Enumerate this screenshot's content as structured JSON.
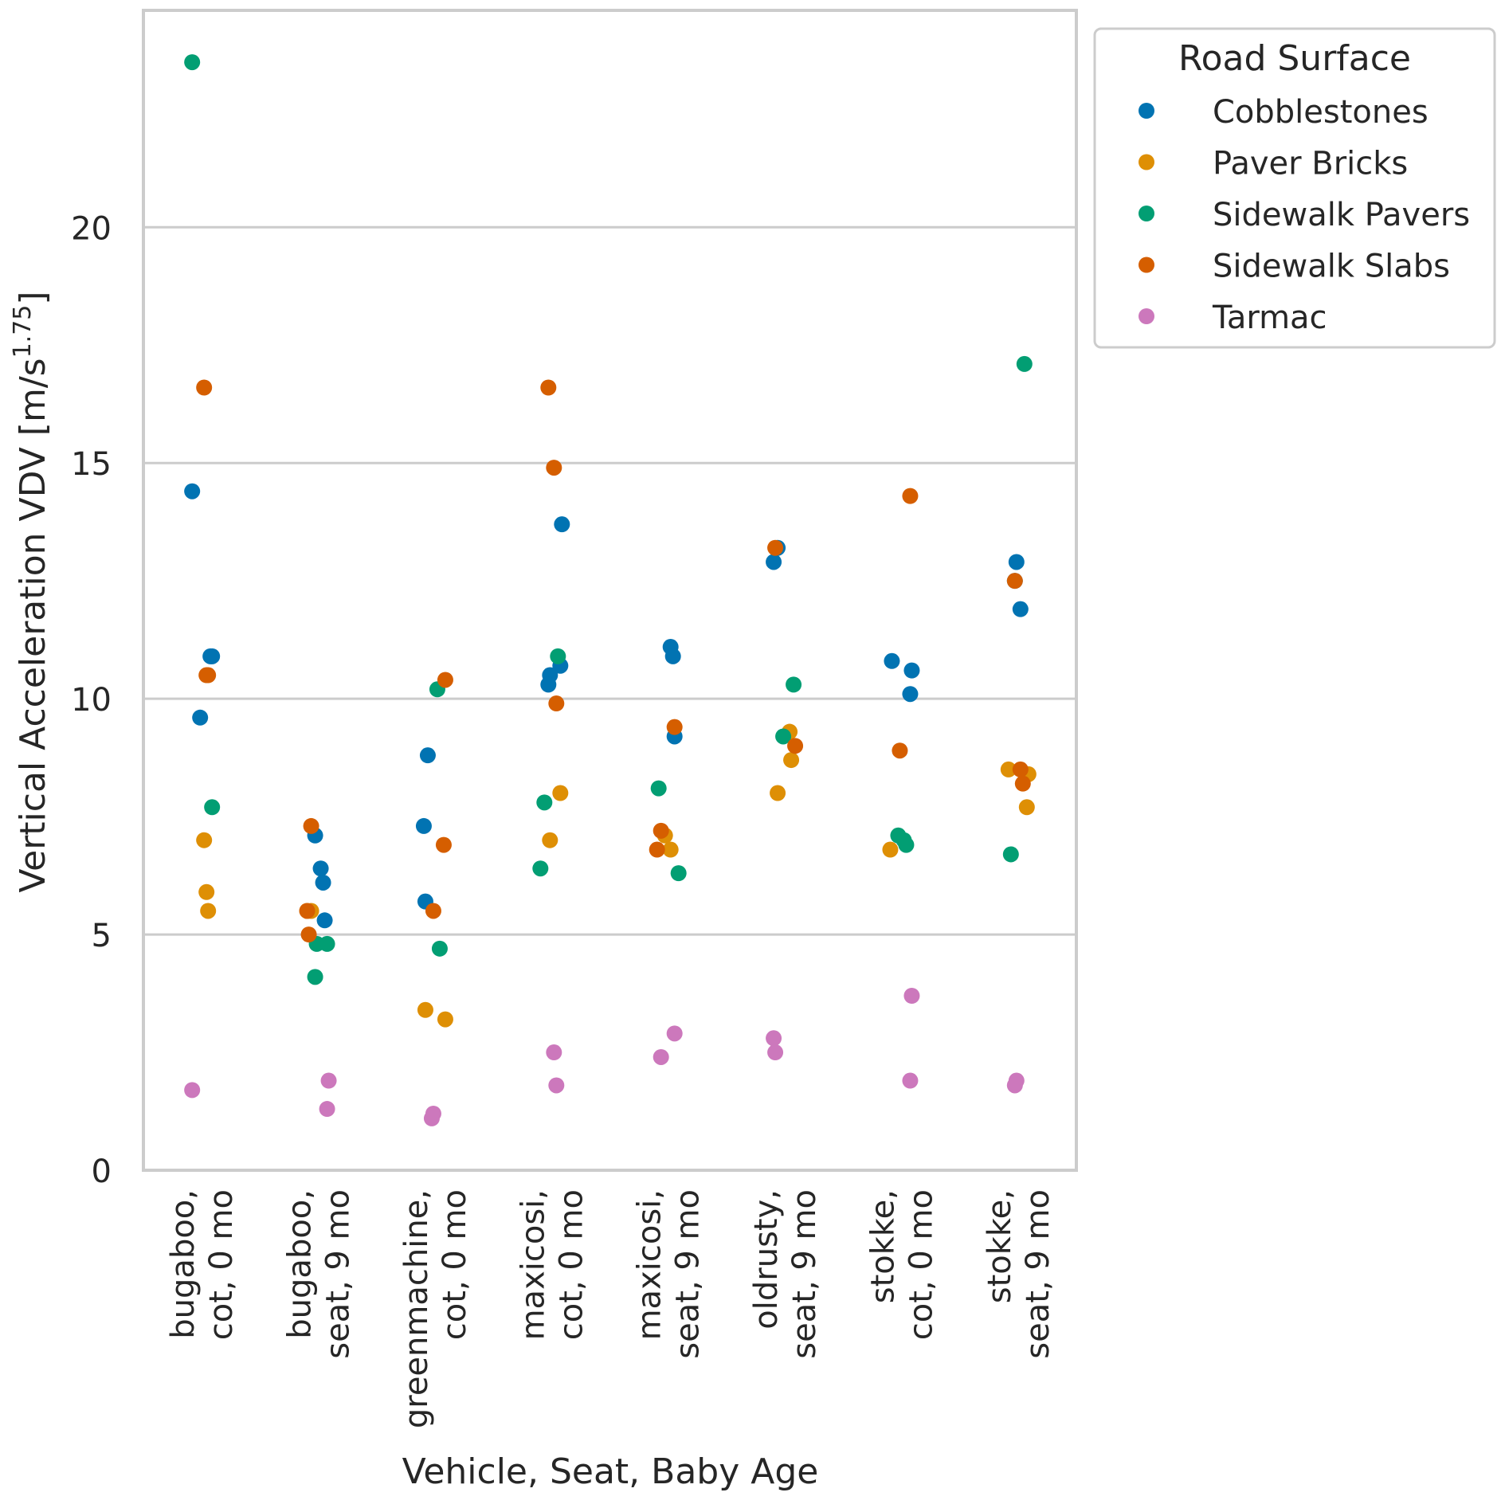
{
  "chart_data": {
    "type": "scatter",
    "xlabel": "Vehicle, Seat, Baby Age",
    "ylabel_main": "Vertical Acceleration VDV [m/s",
    "ylabel_sup": "1.75",
    "ylabel_close": "]",
    "ylim": [
      0,
      24.6
    ],
    "yticks": [
      0,
      5,
      10,
      15,
      20
    ],
    "grid": "horizontal",
    "legend_position": "outside-right-top",
    "legend_title": "Road Surface",
    "categories": [
      [
        "bugaboo,",
        "cot, 0 mo"
      ],
      [
        "bugaboo,",
        "seat, 9 mo"
      ],
      [
        "greenmachine,",
        "cot, 0 mo"
      ],
      [
        "maxicosi,",
        "cot, 0 mo"
      ],
      [
        "maxicosi,",
        "seat, 9 mo"
      ],
      [
        "oldrusty,",
        "seat, 9 mo"
      ],
      [
        "stokke,",
        "cot, 0 mo"
      ],
      [
        "stokke,",
        "seat, 9 mo"
      ]
    ],
    "series": [
      {
        "name": "Cobblestones",
        "color": "#0173b2",
        "points": [
          {
            "x": 0,
            "y": 14.4
          },
          {
            "x": 0,
            "y": 10.9
          },
          {
            "x": 0,
            "y": 10.9
          },
          {
            "x": 0,
            "y": 9.6
          },
          {
            "x": 1,
            "y": 7.1
          },
          {
            "x": 1,
            "y": 6.4
          },
          {
            "x": 1,
            "y": 6.1
          },
          {
            "x": 1,
            "y": 5.3
          },
          {
            "x": 2,
            "y": 8.8
          },
          {
            "x": 2,
            "y": 7.3
          },
          {
            "x": 2,
            "y": 5.7
          },
          {
            "x": 3,
            "y": 13.7
          },
          {
            "x": 3,
            "y": 10.7
          },
          {
            "x": 3,
            "y": 10.5
          },
          {
            "x": 3,
            "y": 10.3
          },
          {
            "x": 4,
            "y": 11.1
          },
          {
            "x": 4,
            "y": 10.9
          },
          {
            "x": 4,
            "y": 9.2
          },
          {
            "x": 5,
            "y": 13.2
          },
          {
            "x": 5,
            "y": 12.9
          },
          {
            "x": 6,
            "y": 10.8
          },
          {
            "x": 6,
            "y": 10.6
          },
          {
            "x": 6,
            "y": 10.1
          },
          {
            "x": 7,
            "y": 12.9
          },
          {
            "x": 7,
            "y": 12.5
          },
          {
            "x": 7,
            "y": 11.9
          }
        ]
      },
      {
        "name": "Paver Bricks",
        "color": "#de8f05",
        "points": [
          {
            "x": 0,
            "y": 7.0
          },
          {
            "x": 0,
            "y": 5.9
          },
          {
            "x": 0,
            "y": 5.5
          },
          {
            "x": 1,
            "y": 5.5
          },
          {
            "x": 1,
            "y": 5.5
          },
          {
            "x": 2,
            "y": 3.4
          },
          {
            "x": 2,
            "y": 3.2
          },
          {
            "x": 3,
            "y": 8.0
          },
          {
            "x": 3,
            "y": 7.0
          },
          {
            "x": 4,
            "y": 7.1
          },
          {
            "x": 4,
            "y": 6.8
          },
          {
            "x": 5,
            "y": 9.3
          },
          {
            "x": 5,
            "y": 8.7
          },
          {
            "x": 5,
            "y": 8.0
          },
          {
            "x": 6,
            "y": 6.8
          },
          {
            "x": 7,
            "y": 8.5
          },
          {
            "x": 7,
            "y": 8.4
          },
          {
            "x": 7,
            "y": 7.7
          }
        ]
      },
      {
        "name": "Sidewalk Pavers",
        "color": "#029e73",
        "points": [
          {
            "x": 0,
            "y": 23.5
          },
          {
            "x": 0,
            "y": 7.7
          },
          {
            "x": 1,
            "y": 4.8
          },
          {
            "x": 1,
            "y": 4.8
          },
          {
            "x": 1,
            "y": 4.1
          },
          {
            "x": 2,
            "y": 10.2
          },
          {
            "x": 2,
            "y": 4.7
          },
          {
            "x": 3,
            "y": 10.9
          },
          {
            "x": 3,
            "y": 7.8
          },
          {
            "x": 3,
            "y": 6.4
          },
          {
            "x": 4,
            "y": 8.1
          },
          {
            "x": 4,
            "y": 6.3
          },
          {
            "x": 5,
            "y": 10.3
          },
          {
            "x": 5,
            "y": 9.2
          },
          {
            "x": 6,
            "y": 7.1
          },
          {
            "x": 6,
            "y": 7.0
          },
          {
            "x": 6,
            "y": 6.9
          },
          {
            "x": 7,
            "y": 17.1
          },
          {
            "x": 7,
            "y": 6.7
          }
        ]
      },
      {
        "name": "Sidewalk Slabs",
        "color": "#d55e00",
        "points": [
          {
            "x": 0,
            "y": 16.6
          },
          {
            "x": 0,
            "y": 10.5
          },
          {
            "x": 0,
            "y": 10.5
          },
          {
            "x": 1,
            "y": 7.3
          },
          {
            "x": 1,
            "y": 5.5
          },
          {
            "x": 1,
            "y": 5.0
          },
          {
            "x": 2,
            "y": 10.4
          },
          {
            "x": 2,
            "y": 6.9
          },
          {
            "x": 2,
            "y": 5.5
          },
          {
            "x": 3,
            "y": 16.6
          },
          {
            "x": 3,
            "y": 14.9
          },
          {
            "x": 3,
            "y": 9.9
          },
          {
            "x": 4,
            "y": 9.4
          },
          {
            "x": 4,
            "y": 7.2
          },
          {
            "x": 4,
            "y": 6.8
          },
          {
            "x": 5,
            "y": 13.2
          },
          {
            "x": 5,
            "y": 9.0
          },
          {
            "x": 6,
            "y": 14.3
          },
          {
            "x": 6,
            "y": 8.9
          },
          {
            "x": 7,
            "y": 12.5
          },
          {
            "x": 7,
            "y": 8.5
          },
          {
            "x": 7,
            "y": 8.2
          }
        ]
      },
      {
        "name": "Tarmac",
        "color": "#cc78bc",
        "points": [
          {
            "x": 0,
            "y": 1.7
          },
          {
            "x": 1,
            "y": 1.9
          },
          {
            "x": 1,
            "y": 1.3
          },
          {
            "x": 2,
            "y": 1.2
          },
          {
            "x": 2,
            "y": 1.1
          },
          {
            "x": 3,
            "y": 2.5
          },
          {
            "x": 3,
            "y": 1.8
          },
          {
            "x": 4,
            "y": 2.9
          },
          {
            "x": 4,
            "y": 2.4
          },
          {
            "x": 5,
            "y": 2.8
          },
          {
            "x": 5,
            "y": 2.5
          },
          {
            "x": 6,
            "y": 3.7
          },
          {
            "x": 6,
            "y": 1.9
          },
          {
            "x": 7,
            "y": 1.9
          },
          {
            "x": 7,
            "y": 1.8
          }
        ]
      }
    ]
  }
}
